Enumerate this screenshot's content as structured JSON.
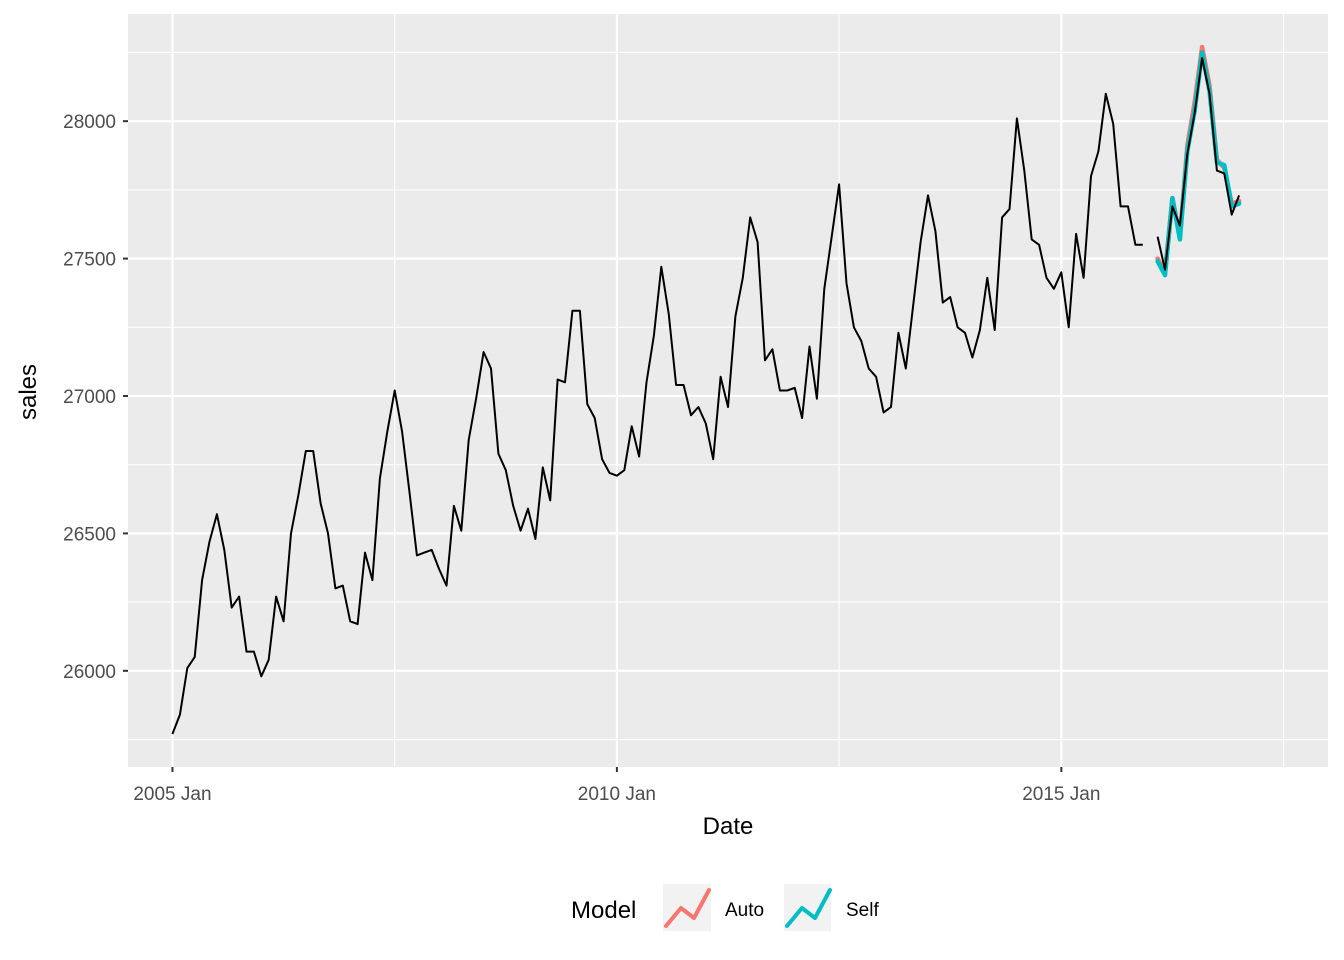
{
  "chart_data": {
    "type": "line",
    "title": "",
    "xlabel": "Date",
    "ylabel": "sales",
    "x_ticks": [
      {
        "date": "2005-01",
        "label": "2005 Jan"
      },
      {
        "date": "2010-01",
        "label": "2010 Jan"
      },
      {
        "date": "2015-01",
        "label": "2015 Jan"
      }
    ],
    "y_ticks": [
      26000,
      26500,
      27000,
      27500,
      28000
    ],
    "xlim": [
      "2004-07",
      "2018-01"
    ],
    "ylim": [
      25650,
      28390
    ],
    "grid": true,
    "legend": {
      "title": "Model",
      "position": "bottom",
      "entries": [
        {
          "label": "Auto",
          "color": "#F8766D"
        },
        {
          "label": "Self",
          "color": "#00BFC4"
        }
      ]
    },
    "colors": {
      "panel": "#EBEBEB",
      "grid": "#FFFFFF",
      "actual": "#000000",
      "auto": "#F8766D",
      "self": "#00BFC4"
    },
    "actual": {
      "start": "2005-01",
      "values": [
        25770,
        25840,
        26010,
        26050,
        26330,
        26470,
        26570,
        26440,
        26230,
        26270,
        26070,
        26070,
        25980,
        26040,
        26270,
        26180,
        26500,
        26640,
        26800,
        26800,
        26610,
        26500,
        26300,
        26310,
        26180,
        26170,
        26430,
        26330,
        26700,
        26870,
        27020,
        26870,
        26650,
        26420,
        26430,
        26440,
        26370,
        26310,
        26600,
        26510,
        26840,
        26990,
        27160,
        27100,
        26790,
        26730,
        26600,
        26510,
        26590,
        26480,
        26740,
        26620,
        27060,
        27050,
        27310,
        27310,
        26970,
        26920,
        26770,
        26720,
        26710,
        26730,
        26890,
        26780,
        27050,
        27220,
        27470,
        27300,
        27040,
        27040,
        26930,
        26960,
        26900,
        26770,
        27070,
        26960,
        27290,
        27430,
        27650,
        27560,
        27130,
        27170,
        27020,
        27020,
        27030,
        26920,
        27180,
        26990,
        27390,
        27580,
        27770,
        27410,
        27250,
        27200,
        27100,
        27070,
        26940,
        26960,
        27230,
        27100,
        27330,
        27560,
        27730,
        27600,
        27340,
        27360,
        27250,
        27230,
        27140,
        27240,
        27430,
        27240,
        27650,
        27680,
        28010,
        27820,
        27570,
        27550,
        27430,
        27390,
        27450,
        27250,
        27590,
        27430,
        27800,
        27890,
        28100,
        27990,
        27690,
        27690,
        27550,
        27550
      ]
    },
    "test_actual": {
      "start": "2016-02",
      "values": [
        27580,
        27460,
        27690,
        27620,
        27880,
        28030,
        28230,
        28100,
        27820,
        27810,
        27660,
        27730
      ]
    },
    "series": [
      {
        "name": "Auto",
        "start": "2016-02",
        "values": [
          27500,
          27450,
          27720,
          27580,
          27910,
          28070,
          28270,
          28130,
          27860,
          27830,
          27700,
          27710
        ]
      },
      {
        "name": "Self",
        "start": "2016-02",
        "values": [
          27490,
          27440,
          27720,
          27570,
          27890,
          28040,
          28250,
          28110,
          27850,
          27840,
          27690,
          27700
        ]
      }
    ]
  }
}
